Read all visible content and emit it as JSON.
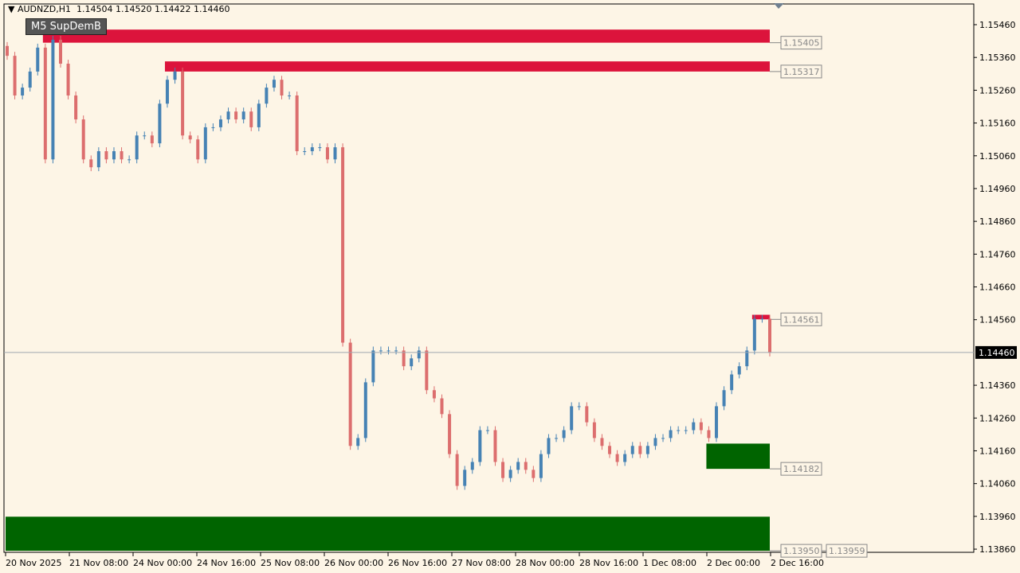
{
  "header": {
    "symbol": "AUDNZD,H1",
    "ohlc": "1.14504 1.14520 1.14422 1.14460"
  },
  "indicator_label": "M5 SupDemB",
  "colors": {
    "bg": "#fdf5e6",
    "bull": "#4682b4",
    "bear": "#dc6e6e",
    "supply": "#dc143c",
    "demand": "#006400",
    "current": "#000000"
  },
  "chart_data": {
    "type": "candlestick",
    "ylim": [
      1.1384,
      1.155
    ],
    "current_price": "1.14460",
    "y_ticks": [
      "1.15460",
      "1.15360",
      "1.15260",
      "1.15160",
      "1.15060",
      "1.14960",
      "1.14860",
      "1.14760",
      "1.14660",
      "1.14560",
      "1.14360",
      "1.14260",
      "1.14160",
      "1.14060",
      "1.13960",
      "1.13860"
    ],
    "x_ticks": [
      "20 Nov 2025",
      "21 Nov 08:00",
      "24 Nov 00:00",
      "24 Nov 16:00",
      "25 Nov 08:00",
      "26 Nov 00:00",
      "26 Nov 16:00",
      "27 Nov 08:00",
      "28 Nov 00:00",
      "28 Nov 16:00",
      "1 Dec 08:00",
      "2 Dec 00:00",
      "2 Dec 16:00"
    ],
    "closes": [
      1.15365,
      1.15244,
      1.15268,
      1.15317,
      1.1539,
      1.15049,
      1.15414,
      1.15341,
      1.15244,
      1.15171,
      1.15049,
      1.15025,
      1.15074,
      1.15049,
      1.15074,
      1.15049,
      1.15049,
      1.15122,
      1.15122,
      1.15098,
      1.15219,
      1.15292,
      1.15317,
      1.15122,
      1.1511,
      1.15049,
      1.15147,
      1.15147,
      1.15171,
      1.15195,
      1.15171,
      1.15195,
      1.15147,
      1.15219,
      1.15268,
      1.15292,
      1.15244,
      1.15244,
      1.15074,
      1.15074,
      1.15086,
      1.15086,
      1.15049,
      1.15086,
      1.1449,
      1.14175,
      1.14199,
      1.14369,
      1.14466,
      1.14466,
      1.14466,
      1.14466,
      1.14418,
      1.14442,
      1.14466,
      1.14345,
      1.1432,
      1.14272,
      1.1415,
      1.14053,
      1.14102,
      1.14126,
      1.14223,
      1.14223,
      1.14126,
      1.14077,
      1.14102,
      1.14126,
      1.14102,
      1.14077,
      1.1415,
      1.14199,
      1.14199,
      1.14223,
      1.14296,
      1.14296,
      1.14247,
      1.14199,
      1.14175,
      1.1415,
      1.14126,
      1.1415,
      1.14175,
      1.1415,
      1.14175,
      1.14199,
      1.14199,
      1.14223,
      1.14223,
      1.14223,
      1.14247,
      1.14223,
      1.14199,
      1.14296,
      1.14345,
      1.14393,
      1.14418,
      1.14466,
      1.14563,
      1.14563,
      1.1446
    ],
    "zones": [
      {
        "kind": "supply",
        "top": 1.15445,
        "bottom": 1.15405,
        "start_bar": 5,
        "label": "1.15405"
      },
      {
        "kind": "supply",
        "top": 1.15348,
        "bottom": 1.15317,
        "start_bar": 21,
        "label": "1.15317"
      },
      {
        "kind": "supply",
        "top": 1.14575,
        "bottom": 1.14561,
        "start_bar": 98,
        "label": "1.14561"
      },
      {
        "kind": "demand",
        "top": 1.14182,
        "bottom": 1.14105,
        "start_bar": 92,
        "label": "1.14182"
      },
      {
        "kind": "demand",
        "top": 1.13959,
        "bottom": 1.13855,
        "start_bar": 0,
        "label": "1.13950",
        "label2": "1.13959"
      }
    ]
  }
}
